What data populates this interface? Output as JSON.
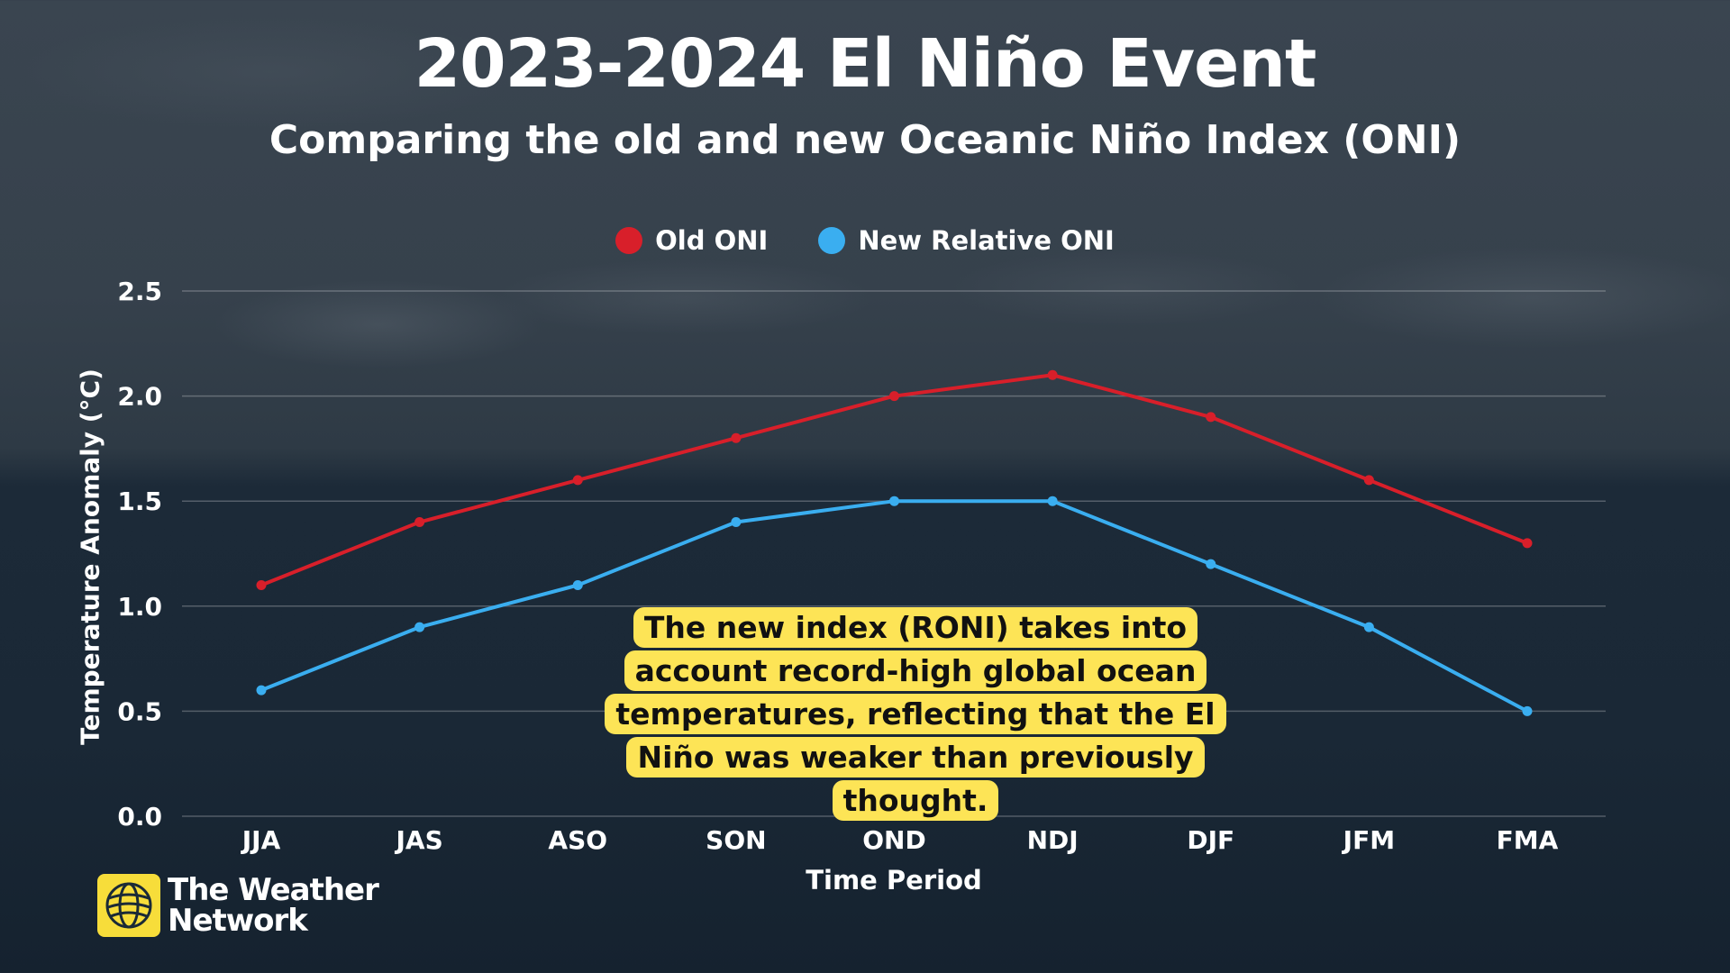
{
  "title": "2023-2024 El Niño Event",
  "subtitle": "Comparing the old and new Oceanic Niño Index (ONI)",
  "annotation": "The new index (RONI) takes into account record-high global ocean temperatures, reflecting that the El Niño was weaker than previously thought.",
  "logo": {
    "line1": "The Weather",
    "line2": "Network",
    "icon": "globe-icon"
  },
  "colors": {
    "old": "#d81f2a",
    "new": "#3aaef0",
    "grid": "rgba(255,255,255,0.25)",
    "annotation_bg": "#fde456"
  },
  "chart_data": {
    "type": "line",
    "xlabel": "Time Period",
    "ylabel": "Temperature Anomaly (°C)",
    "categories": [
      "JJA",
      "JAS",
      "ASO",
      "SON",
      "OND",
      "NDJ",
      "DJF",
      "JFM",
      "FMA"
    ],
    "series": [
      {
        "name": "Old ONI",
        "values": [
          1.1,
          1.4,
          1.6,
          1.8,
          2.0,
          2.1,
          1.9,
          1.6,
          1.3
        ]
      },
      {
        "name": "New Relative ONI",
        "values": [
          0.6,
          0.9,
          1.1,
          1.4,
          1.5,
          1.5,
          1.2,
          0.9,
          0.5
        ]
      }
    ],
    "ylim": [
      0,
      2.5
    ],
    "yticks": [
      "0.0",
      "0.5",
      "1.0",
      "1.5",
      "2.0",
      "2.5"
    ],
    "grid": true,
    "legend_position": "top-center"
  }
}
